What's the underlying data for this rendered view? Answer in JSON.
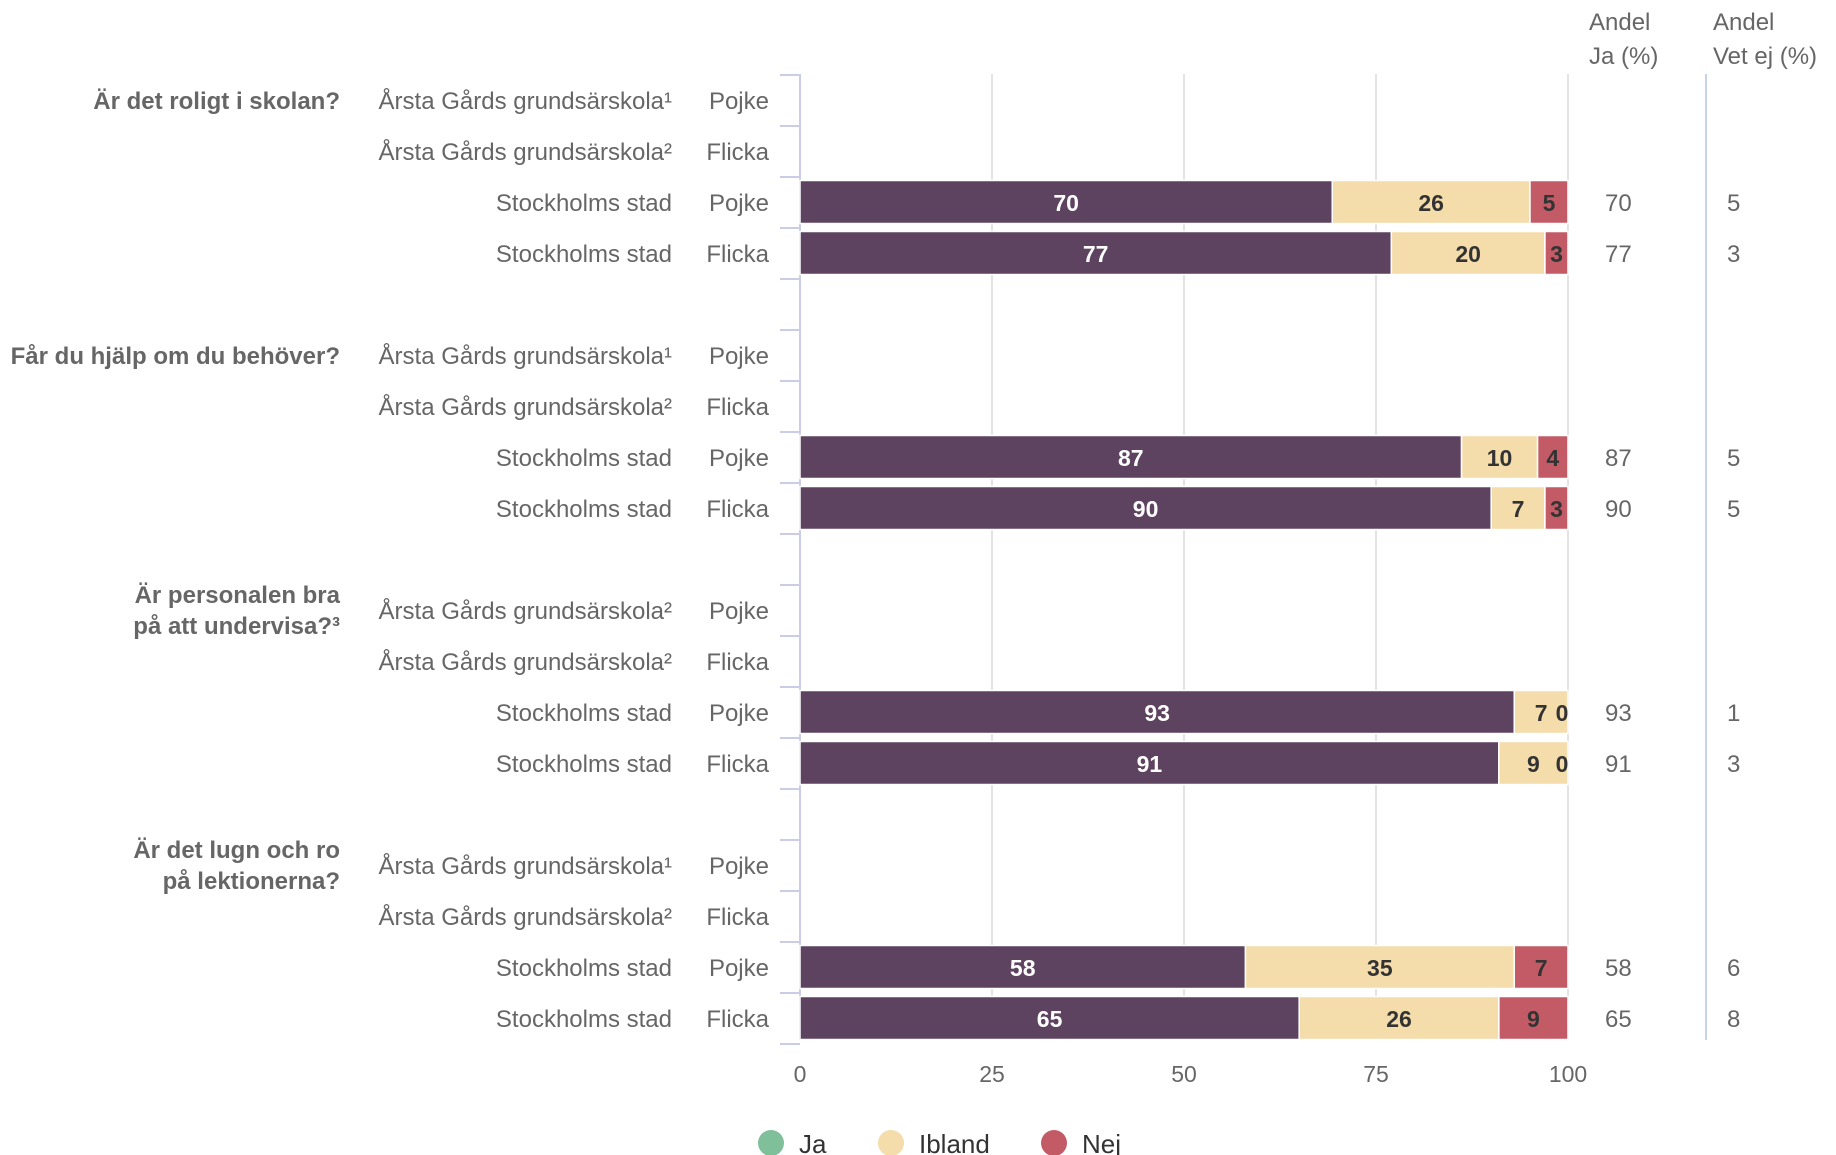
{
  "chart_data": {
    "type": "bar",
    "orientation": "horizontal",
    "stacked": true,
    "xlim": [
      0,
      100
    ],
    "x_ticks": [
      "0",
      "25",
      "50",
      "75",
      "100"
    ],
    "grid": true,
    "legend_position": "bottom",
    "legend": [
      {
        "name": "Ja",
        "color": "#7fbf9a"
      },
      {
        "name": "Ibland",
        "color": "#f4dcab"
      },
      {
        "name": "Nej",
        "color": "#c25b66"
      }
    ],
    "segment_colors": [
      "#5e4360",
      "#f4dcab",
      "#c25b66"
    ],
    "segment_text_colors": [
      "#ffffff",
      "#333333",
      "#333333"
    ],
    "side_columns": [
      {
        "header": [
          "Andel",
          "Ja (%)"
        ]
      },
      {
        "header": [
          "Andel",
          "Vet ej (%)"
        ]
      }
    ],
    "groups": [
      {
        "question": [
          "Är det roligt i skolan?"
        ],
        "rows": [
          {
            "unit": "Årsta Gårds grundsärskola¹",
            "gender": "Pojke",
            "values": null,
            "ja_pct": null,
            "vet_ej_pct": null
          },
          {
            "unit": "Årsta Gårds grundsärskola²",
            "gender": "Flicka",
            "values": null,
            "ja_pct": null,
            "vet_ej_pct": null
          },
          {
            "unit": "Stockholms stad",
            "gender": "Pojke",
            "values": [
              70,
              26,
              5
            ],
            "ja_pct": "70",
            "vet_ej_pct": "5"
          },
          {
            "unit": "Stockholms stad",
            "gender": "Flicka",
            "values": [
              77,
              20,
              3
            ],
            "ja_pct": "77",
            "vet_ej_pct": "3"
          }
        ]
      },
      {
        "question": [
          "Får du hjälp om du behöver?"
        ],
        "rows": [
          {
            "unit": "Årsta Gårds grundsärskola¹",
            "gender": "Pojke",
            "values": null,
            "ja_pct": null,
            "vet_ej_pct": null
          },
          {
            "unit": "Årsta Gårds grundsärskola²",
            "gender": "Flicka",
            "values": null,
            "ja_pct": null,
            "vet_ej_pct": null
          },
          {
            "unit": "Stockholms stad",
            "gender": "Pojke",
            "values": [
              87,
              10,
              4
            ],
            "ja_pct": "87",
            "vet_ej_pct": "5"
          },
          {
            "unit": "Stockholms stad",
            "gender": "Flicka",
            "values": [
              90,
              7,
              3
            ],
            "ja_pct": "90",
            "vet_ej_pct": "5"
          }
        ]
      },
      {
        "question": [
          "Är personalen bra",
          "på att undervisa?³"
        ],
        "rows": [
          {
            "unit": "Årsta Gårds grundsärskola²",
            "gender": "Pojke",
            "values": null,
            "ja_pct": null,
            "vet_ej_pct": null
          },
          {
            "unit": "Årsta Gårds grundsärskola²",
            "gender": "Flicka",
            "values": null,
            "ja_pct": null,
            "vet_ej_pct": null
          },
          {
            "unit": "Stockholms stad",
            "gender": "Pojke",
            "values": [
              93,
              7,
              0
            ],
            "ja_pct": "93",
            "vet_ej_pct": "1"
          },
          {
            "unit": "Stockholms stad",
            "gender": "Flicka",
            "values": [
              91,
              9,
              0
            ],
            "ja_pct": "91",
            "vet_ej_pct": "3"
          }
        ]
      },
      {
        "question": [
          "Är det lugn och ro",
          "på lektionerna?"
        ],
        "rows": [
          {
            "unit": "Årsta Gårds grundsärskola¹",
            "gender": "Pojke",
            "values": null,
            "ja_pct": null,
            "vet_ej_pct": null
          },
          {
            "unit": "Årsta Gårds grundsärskola²",
            "gender": "Flicka",
            "values": null,
            "ja_pct": null,
            "vet_ej_pct": null
          },
          {
            "unit": "Stockholms stad",
            "gender": "Pojke",
            "values": [
              58,
              35,
              7
            ],
            "ja_pct": "58",
            "vet_ej_pct": "6"
          },
          {
            "unit": "Stockholms stad",
            "gender": "Flicka",
            "values": [
              65,
              26,
              9
            ],
            "ja_pct": "65",
            "vet_ej_pct": "8"
          }
        ]
      }
    ]
  }
}
